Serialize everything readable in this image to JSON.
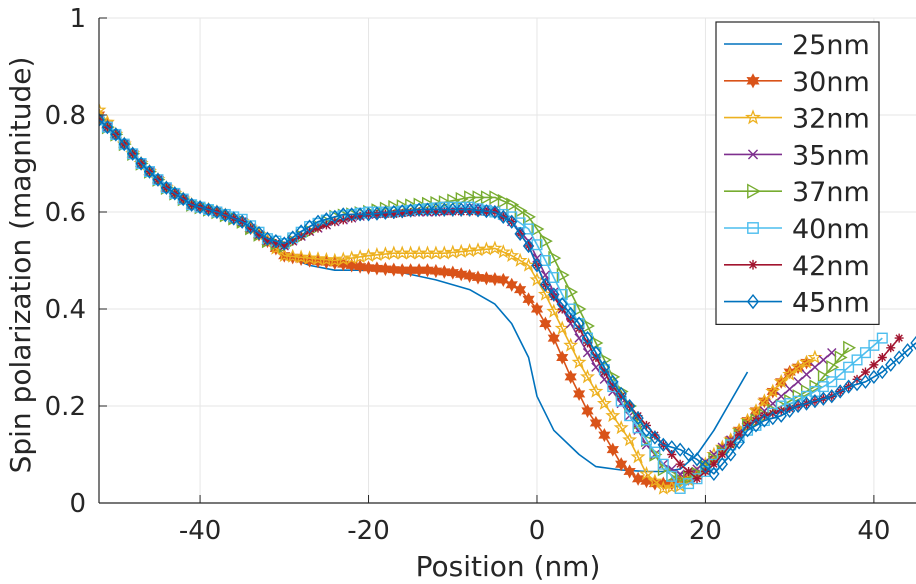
{
  "chart_data": {
    "type": "line",
    "title": "",
    "xlabel": "Position (nm)",
    "ylabel": "Spin polarization (magnitude)",
    "xlim": [
      -52,
      45
    ],
    "ylim": [
      0,
      1
    ],
    "xticks": [
      -40,
      -20,
      0,
      20,
      40
    ],
    "xtick_labels": [
      "-40",
      "-20",
      "0",
      "20",
      "40"
    ],
    "yticks": [
      0,
      0.2,
      0.4,
      0.6,
      0.8,
      1
    ],
    "ytick_labels": [
      "0",
      "0.2",
      "0.4",
      "0.6",
      "0.8",
      "1"
    ],
    "grid": true,
    "legend_position": "top-right",
    "series": [
      {
        "name": "25nm",
        "color": "#0072BD",
        "marker": "none",
        "points": [
          [
            -52,
            0.8
          ],
          [
            -50,
            0.76
          ],
          [
            -47,
            0.7
          ],
          [
            -44,
            0.65
          ],
          [
            -41,
            0.615
          ],
          [
            -38,
            0.6
          ],
          [
            -35,
            0.58
          ],
          [
            -32,
            0.54
          ],
          [
            -30,
            0.51
          ],
          [
            -27,
            0.49
          ],
          [
            -24,
            0.48
          ],
          [
            -20,
            0.48
          ],
          [
            -16,
            0.475
          ],
          [
            -12,
            0.46
          ],
          [
            -8,
            0.44
          ],
          [
            -5,
            0.41
          ],
          [
            -3,
            0.37
          ],
          [
            -1,
            0.3
          ],
          [
            0,
            0.22
          ],
          [
            2,
            0.15
          ],
          [
            5,
            0.1
          ],
          [
            7,
            0.075
          ],
          [
            10,
            0.068
          ],
          [
            13,
            0.065
          ],
          [
            15,
            0.065
          ],
          [
            17,
            0.07
          ],
          [
            19,
            0.1
          ],
          [
            21,
            0.15
          ],
          [
            23,
            0.21
          ],
          [
            25,
            0.27
          ]
        ]
      },
      {
        "name": "30nm",
        "color": "#D95319",
        "marker": "hexagram",
        "points": [
          [
            -52,
            0.8
          ],
          [
            -50,
            0.76
          ],
          [
            -47,
            0.7
          ],
          [
            -44,
            0.65
          ],
          [
            -41,
            0.615
          ],
          [
            -38,
            0.6
          ],
          [
            -35,
            0.58
          ],
          [
            -32,
            0.54
          ],
          [
            -30,
            0.51
          ],
          [
            -27,
            0.5
          ],
          [
            -24,
            0.495
          ],
          [
            -20,
            0.485
          ],
          [
            -16,
            0.48
          ],
          [
            -13,
            0.48
          ],
          [
            -10,
            0.475
          ],
          [
            -7,
            0.465
          ],
          [
            -4,
            0.46
          ],
          [
            -2,
            0.44
          ],
          [
            0,
            0.4
          ],
          [
            2,
            0.34
          ],
          [
            4,
            0.26
          ],
          [
            6,
            0.19
          ],
          [
            8,
            0.14
          ],
          [
            10,
            0.08
          ],
          [
            12,
            0.05
          ],
          [
            14,
            0.04
          ],
          [
            16,
            0.04
          ],
          [
            18,
            0.05
          ],
          [
            20,
            0.07
          ],
          [
            22,
            0.11
          ],
          [
            24,
            0.15
          ],
          [
            26,
            0.19
          ],
          [
            28,
            0.23
          ],
          [
            30,
            0.27
          ],
          [
            32,
            0.29
          ]
        ]
      },
      {
        "name": "32nm",
        "color": "#EDB120",
        "marker": "star",
        "points": [
          [
            -52,
            0.81
          ],
          [
            -50,
            0.76
          ],
          [
            -47,
            0.7
          ],
          [
            -44,
            0.65
          ],
          [
            -41,
            0.615
          ],
          [
            -38,
            0.6
          ],
          [
            -35,
            0.58
          ],
          [
            -32,
            0.54
          ],
          [
            -30,
            0.51
          ],
          [
            -27,
            0.505
          ],
          [
            -24,
            0.5
          ],
          [
            -20,
            0.51
          ],
          [
            -17,
            0.515
          ],
          [
            -14,
            0.515
          ],
          [
            -11,
            0.515
          ],
          [
            -8,
            0.52
          ],
          [
            -5,
            0.525
          ],
          [
            -3,
            0.51
          ],
          [
            -1,
            0.49
          ],
          [
            1,
            0.43
          ],
          [
            3,
            0.36
          ],
          [
            5,
            0.29
          ],
          [
            7,
            0.23
          ],
          [
            9,
            0.18
          ],
          [
            11,
            0.13
          ],
          [
            13,
            0.06
          ],
          [
            15,
            0.03
          ],
          [
            17,
            0.035
          ],
          [
            19,
            0.06
          ],
          [
            21,
            0.1
          ],
          [
            23,
            0.13
          ],
          [
            25,
            0.17
          ],
          [
            27,
            0.21
          ],
          [
            29,
            0.25
          ],
          [
            31,
            0.28
          ],
          [
            33,
            0.3
          ]
        ]
      },
      {
        "name": "35nm",
        "color": "#7E2F8E",
        "marker": "x",
        "points": [
          [
            -52,
            0.79
          ],
          [
            -50,
            0.76
          ],
          [
            -47,
            0.7
          ],
          [
            -44,
            0.65
          ],
          [
            -41,
            0.615
          ],
          [
            -38,
            0.6
          ],
          [
            -35,
            0.58
          ],
          [
            -32,
            0.54
          ],
          [
            -30,
            0.53
          ],
          [
            -27,
            0.56
          ],
          [
            -24,
            0.58
          ],
          [
            -20,
            0.595
          ],
          [
            -16,
            0.6
          ],
          [
            -12,
            0.6
          ],
          [
            -8,
            0.61
          ],
          [
            -5,
            0.605
          ],
          [
            -3,
            0.58
          ],
          [
            -1,
            0.54
          ],
          [
            1,
            0.47
          ],
          [
            3,
            0.4
          ],
          [
            5,
            0.34
          ],
          [
            7,
            0.28
          ],
          [
            9,
            0.23
          ],
          [
            11,
            0.18
          ],
          [
            13,
            0.12
          ],
          [
            15,
            0.08
          ],
          [
            17,
            0.06
          ],
          [
            19,
            0.07
          ],
          [
            21,
            0.1
          ],
          [
            23,
            0.13
          ],
          [
            25,
            0.16
          ],
          [
            27,
            0.19
          ],
          [
            29,
            0.22
          ],
          [
            31,
            0.25
          ],
          [
            33,
            0.28
          ],
          [
            35,
            0.31
          ]
        ]
      },
      {
        "name": "37nm",
        "color": "#77AC30",
        "marker": "triangle-right",
        "points": [
          [
            -52,
            0.79
          ],
          [
            -50,
            0.76
          ],
          [
            -47,
            0.7
          ],
          [
            -44,
            0.65
          ],
          [
            -41,
            0.615
          ],
          [
            -38,
            0.6
          ],
          [
            -35,
            0.58
          ],
          [
            -32,
            0.54
          ],
          [
            -30,
            0.53
          ],
          [
            -27,
            0.56
          ],
          [
            -24,
            0.59
          ],
          [
            -20,
            0.6
          ],
          [
            -17,
            0.61
          ],
          [
            -14,
            0.615
          ],
          [
            -11,
            0.62
          ],
          [
            -8,
            0.63
          ],
          [
            -5,
            0.63
          ],
          [
            -3,
            0.615
          ],
          [
            -1,
            0.59
          ],
          [
            1,
            0.54
          ],
          [
            3,
            0.47
          ],
          [
            5,
            0.4
          ],
          [
            7,
            0.33
          ],
          [
            9,
            0.26
          ],
          [
            11,
            0.2
          ],
          [
            13,
            0.13
          ],
          [
            15,
            0.07
          ],
          [
            17,
            0.045
          ],
          [
            19,
            0.06
          ],
          [
            21,
            0.09
          ],
          [
            23,
            0.12
          ],
          [
            25,
            0.16
          ],
          [
            27,
            0.18
          ],
          [
            29,
            0.2
          ],
          [
            31,
            0.22
          ],
          [
            33,
            0.24
          ],
          [
            35,
            0.28
          ],
          [
            37,
            0.32
          ]
        ]
      },
      {
        "name": "40nm",
        "color": "#4DBEEE",
        "marker": "square",
        "points": [
          [
            -52,
            0.79
          ],
          [
            -50,
            0.76
          ],
          [
            -47,
            0.7
          ],
          [
            -44,
            0.65
          ],
          [
            -41,
            0.615
          ],
          [
            -38,
            0.6
          ],
          [
            -35,
            0.585
          ],
          [
            -32,
            0.545
          ],
          [
            -30,
            0.535
          ],
          [
            -27,
            0.57
          ],
          [
            -24,
            0.59
          ],
          [
            -20,
            0.6
          ],
          [
            -17,
            0.6
          ],
          [
            -14,
            0.605
          ],
          [
            -11,
            0.61
          ],
          [
            -8,
            0.61
          ],
          [
            -5,
            0.6
          ],
          [
            -3,
            0.59
          ],
          [
            -1,
            0.565
          ],
          [
            1,
            0.5
          ],
          [
            3,
            0.43
          ],
          [
            5,
            0.37
          ],
          [
            7,
            0.31
          ],
          [
            9,
            0.24
          ],
          [
            11,
            0.18
          ],
          [
            13,
            0.13
          ],
          [
            15,
            0.08
          ],
          [
            17,
            0.03
          ],
          [
            19,
            0.05
          ],
          [
            21,
            0.08
          ],
          [
            23,
            0.12
          ],
          [
            25,
            0.15
          ],
          [
            27,
            0.17
          ],
          [
            29,
            0.2
          ],
          [
            31,
            0.21
          ],
          [
            33,
            0.23
          ],
          [
            35,
            0.25
          ],
          [
            37,
            0.28
          ],
          [
            39,
            0.31
          ],
          [
            41,
            0.34
          ]
        ]
      },
      {
        "name": "42nm",
        "color": "#A2142F",
        "marker": "asterisk",
        "points": [
          [
            -52,
            0.79
          ],
          [
            -50,
            0.76
          ],
          [
            -47,
            0.7
          ],
          [
            -44,
            0.65
          ],
          [
            -41,
            0.615
          ],
          [
            -38,
            0.6
          ],
          [
            -35,
            0.58
          ],
          [
            -32,
            0.54
          ],
          [
            -30,
            0.53
          ],
          [
            -27,
            0.56
          ],
          [
            -24,
            0.58
          ],
          [
            -20,
            0.595
          ],
          [
            -17,
            0.595
          ],
          [
            -14,
            0.6
          ],
          [
            -11,
            0.6
          ],
          [
            -8,
            0.6
          ],
          [
            -5,
            0.6
          ],
          [
            -3,
            0.58
          ],
          [
            -1,
            0.53
          ],
          [
            1,
            0.45
          ],
          [
            3,
            0.4
          ],
          [
            5,
            0.36
          ],
          [
            7,
            0.3
          ],
          [
            9,
            0.24
          ],
          [
            11,
            0.2
          ],
          [
            13,
            0.16
          ],
          [
            15,
            0.12
          ],
          [
            17,
            0.08
          ],
          [
            19,
            0.05
          ],
          [
            21,
            0.08
          ],
          [
            23,
            0.12
          ],
          [
            25,
            0.16
          ],
          [
            27,
            0.18
          ],
          [
            29,
            0.19
          ],
          [
            31,
            0.2
          ],
          [
            33,
            0.21
          ],
          [
            35,
            0.22
          ],
          [
            37,
            0.24
          ],
          [
            39,
            0.27
          ],
          [
            41,
            0.3
          ],
          [
            43,
            0.34
          ]
        ]
      },
      {
        "name": "45nm",
        "color": "#0072BD",
        "marker": "diamond",
        "points": [
          [
            -52,
            0.79
          ],
          [
            -50,
            0.76
          ],
          [
            -47,
            0.7
          ],
          [
            -44,
            0.65
          ],
          [
            -41,
            0.615
          ],
          [
            -38,
            0.6
          ],
          [
            -35,
            0.58
          ],
          [
            -32,
            0.545
          ],
          [
            -30,
            0.535
          ],
          [
            -28,
            0.56
          ],
          [
            -26,
            0.58
          ],
          [
            -23,
            0.595
          ],
          [
            -20,
            0.595
          ],
          [
            -17,
            0.6
          ],
          [
            -14,
            0.605
          ],
          [
            -11,
            0.605
          ],
          [
            -8,
            0.605
          ],
          [
            -5,
            0.6
          ],
          [
            -3,
            0.58
          ],
          [
            -1,
            0.53
          ],
          [
            1,
            0.45
          ],
          [
            3,
            0.41
          ],
          [
            5,
            0.37
          ],
          [
            7,
            0.31
          ],
          [
            9,
            0.25
          ],
          [
            11,
            0.2
          ],
          [
            13,
            0.15
          ],
          [
            15,
            0.12
          ],
          [
            17,
            0.11
          ],
          [
            19,
            0.09
          ],
          [
            21,
            0.06
          ],
          [
            23,
            0.1
          ],
          [
            25,
            0.15
          ],
          [
            27,
            0.17
          ],
          [
            29,
            0.18
          ],
          [
            31,
            0.2
          ],
          [
            33,
            0.21
          ],
          [
            35,
            0.22
          ],
          [
            37,
            0.24
          ],
          [
            39,
            0.25
          ],
          [
            41,
            0.27
          ],
          [
            43,
            0.3
          ],
          [
            45,
            0.33
          ]
        ]
      }
    ]
  }
}
